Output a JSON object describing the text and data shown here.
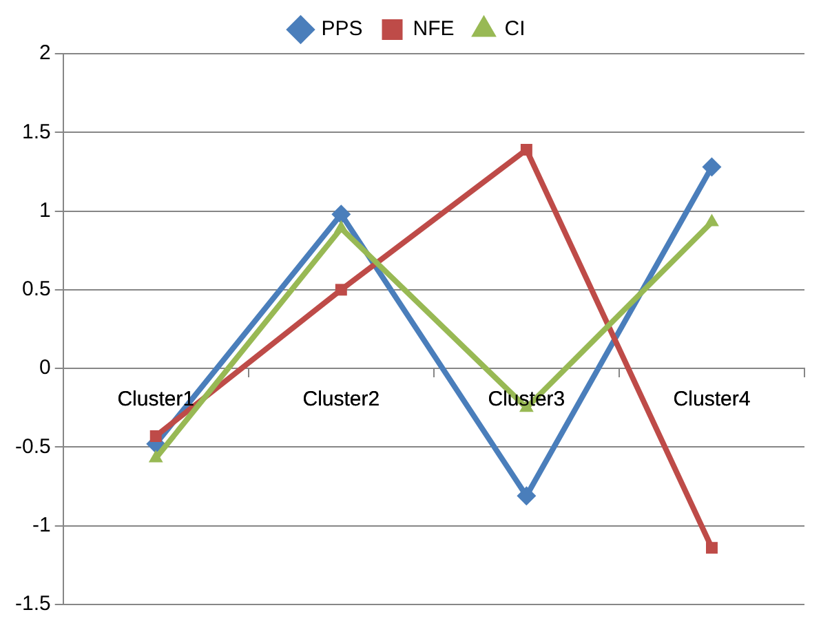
{
  "chart_data": {
    "type": "line",
    "categories": [
      "Cluster1",
      "Cluster2",
      "Cluster3",
      "Cluster4"
    ],
    "series": [
      {
        "name": "PPS",
        "color": "#4a7ebb",
        "marker": "diamond",
        "values": [
          -0.48,
          0.98,
          -0.81,
          1.28
        ]
      },
      {
        "name": "NFE",
        "color": "#be4b48",
        "marker": "square",
        "values": [
          -0.43,
          0.5,
          1.39,
          -1.14
        ]
      },
      {
        "name": "CI",
        "color": "#98b954",
        "marker": "triangle",
        "values": [
          -0.57,
          0.89,
          -0.25,
          0.93
        ]
      }
    ],
    "ylim": [
      -1.5,
      2
    ],
    "yticks": [
      -1.5,
      -1,
      -0.5,
      0,
      0.5,
      1,
      1.5,
      2
    ],
    "grid": "y",
    "legend": "top",
    "line_style": "solid"
  }
}
